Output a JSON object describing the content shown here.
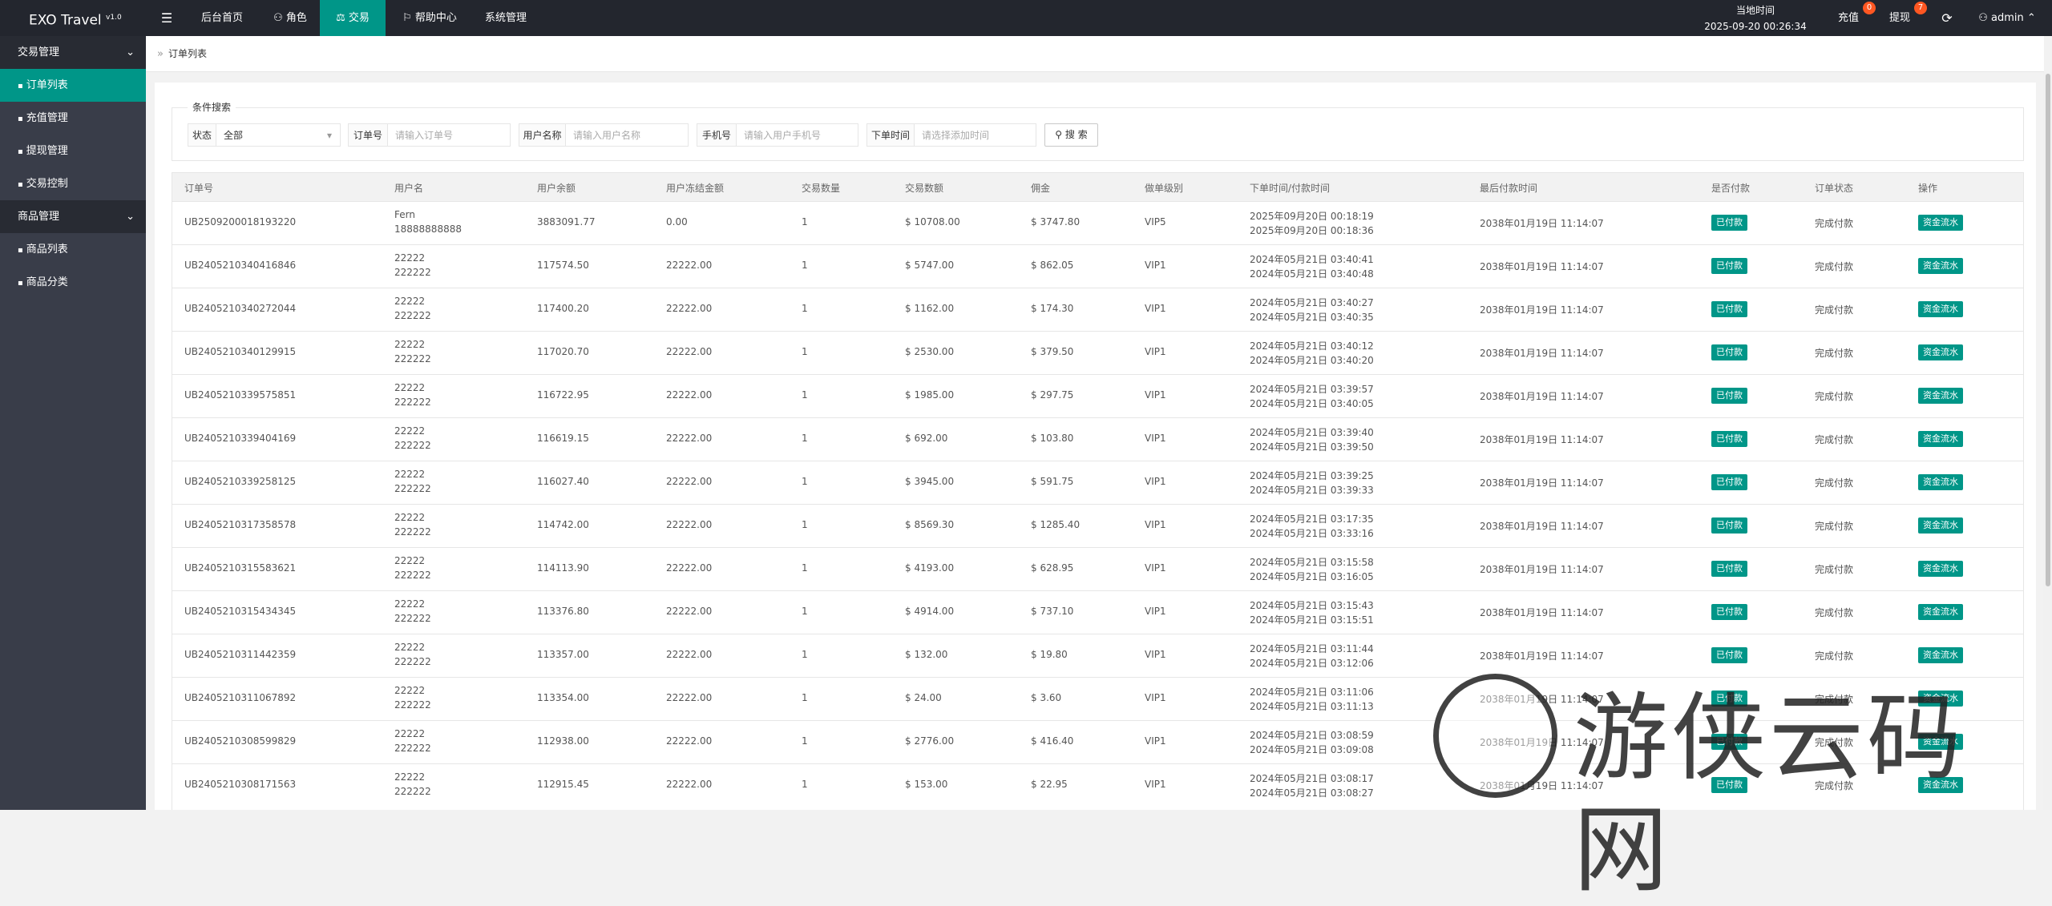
{
  "header": {
    "logo": "EXO Travel",
    "version": "v1.0",
    "nav": [
      "后台首页",
      "角色",
      "交易",
      "帮助中心",
      "系统管理"
    ],
    "time_label": "当地时间",
    "time": "2025-09-20 00:26:34",
    "recharge": "充值",
    "recharge_badge": 0,
    "withdraw": "提现",
    "withdraw_badge": 7,
    "user": "admin"
  },
  "sidebar": {
    "groups": [
      {
        "title": "交易管理",
        "items": [
          "订单列表",
          "充值管理",
          "提现管理",
          "交易控制"
        ]
      },
      {
        "title": "商品管理",
        "items": [
          "商品列表",
          "商品分类"
        ]
      }
    ]
  },
  "breadcrumb": "订单列表",
  "search": {
    "legend": "条件搜索",
    "status_label": "状态",
    "status_value": "全部",
    "order_label": "订单号",
    "order_placeholder": "请输入订单号",
    "name_label": "用户名称",
    "name_placeholder": "请输入用户名称",
    "phone_label": "手机号",
    "phone_placeholder": "请输入用户手机号",
    "time_label": "下单时间",
    "time_placeholder": "请选择添加时间",
    "button": "搜 索"
  },
  "table": {
    "headers": [
      "订单号",
      "用户名",
      "用户余额",
      "用户冻结金额",
      "交易数量",
      "交易数额",
      "佣金",
      "做单级别",
      "下单时间/付款时间",
      "最后付款时间",
      "是否付款",
      "订单状态",
      "操作"
    ],
    "rows": [
      [
        "UB2509200018193220",
        "Fern",
        "18888888888",
        "3883091.77",
        "0.00",
        "1",
        "$ 10708.00",
        "$ 3747.80",
        "VIP5",
        "2025年09月20日 00:18:19",
        "2025年09月20日 00:18:36",
        "2038年01月19日 11:14:07",
        "已付款",
        "完成付款",
        "资金流水"
      ],
      [
        "UB2405210340416846",
        "22222",
        "222222",
        "117574.50",
        "22222.00",
        "1",
        "$ 5747.00",
        "$ 862.05",
        "VIP1",
        "2024年05月21日 03:40:41",
        "2024年05月21日 03:40:48",
        "2038年01月19日 11:14:07",
        "已付款",
        "完成付款",
        "资金流水"
      ],
      [
        "UB2405210340272044",
        "22222",
        "222222",
        "117400.20",
        "22222.00",
        "1",
        "$ 1162.00",
        "$ 174.30",
        "VIP1",
        "2024年05月21日 03:40:27",
        "2024年05月21日 03:40:35",
        "2038年01月19日 11:14:07",
        "已付款",
        "完成付款",
        "资金流水"
      ],
      [
        "UB2405210340129915",
        "22222",
        "222222",
        "117020.70",
        "22222.00",
        "1",
        "$ 2530.00",
        "$ 379.50",
        "VIP1",
        "2024年05月21日 03:40:12",
        "2024年05月21日 03:40:20",
        "2038年01月19日 11:14:07",
        "已付款",
        "完成付款",
        "资金流水"
      ],
      [
        "UB2405210339575851",
        "22222",
        "222222",
        "116722.95",
        "22222.00",
        "1",
        "$ 1985.00",
        "$ 297.75",
        "VIP1",
        "2024年05月21日 03:39:57",
        "2024年05月21日 03:40:05",
        "2038年01月19日 11:14:07",
        "已付款",
        "完成付款",
        "资金流水"
      ],
      [
        "UB2405210339404169",
        "22222",
        "222222",
        "116619.15",
        "22222.00",
        "1",
        "$ 692.00",
        "$ 103.80",
        "VIP1",
        "2024年05月21日 03:39:40",
        "2024年05月21日 03:39:50",
        "2038年01月19日 11:14:07",
        "已付款",
        "完成付款",
        "资金流水"
      ],
      [
        "UB2405210339258125",
        "22222",
        "222222",
        "116027.40",
        "22222.00",
        "1",
        "$ 3945.00",
        "$ 591.75",
        "VIP1",
        "2024年05月21日 03:39:25",
        "2024年05月21日 03:39:33",
        "2038年01月19日 11:14:07",
        "已付款",
        "完成付款",
        "资金流水"
      ],
      [
        "UB2405210317358578",
        "22222",
        "222222",
        "114742.00",
        "22222.00",
        "1",
        "$ 8569.30",
        "$ 1285.40",
        "VIP1",
        "2024年05月21日 03:17:35",
        "2024年05月21日 03:33:16",
        "2038年01月19日 11:14:07",
        "已付款",
        "完成付款",
        "资金流水"
      ],
      [
        "UB2405210315583621",
        "22222",
        "222222",
        "114113.90",
        "22222.00",
        "1",
        "$ 4193.00",
        "$ 628.95",
        "VIP1",
        "2024年05月21日 03:15:58",
        "2024年05月21日 03:16:05",
        "2038年01月19日 11:14:07",
        "已付款",
        "完成付款",
        "资金流水"
      ],
      [
        "UB2405210315434345",
        "22222",
        "222222",
        "113376.80",
        "22222.00",
        "1",
        "$ 4914.00",
        "$ 737.10",
        "VIP1",
        "2024年05月21日 03:15:43",
        "2024年05月21日 03:15:51",
        "2038年01月19日 11:14:07",
        "已付款",
        "完成付款",
        "资金流水"
      ],
      [
        "UB2405210311442359",
        "22222",
        "222222",
        "113357.00",
        "22222.00",
        "1",
        "$ 132.00",
        "$ 19.80",
        "VIP1",
        "2024年05月21日 03:11:44",
        "2024年05月21日 03:12:06",
        "2038年01月19日 11:14:07",
        "已付款",
        "完成付款",
        "资金流水"
      ],
      [
        "UB2405210311067892",
        "22222",
        "222222",
        "113354.00",
        "22222.00",
        "1",
        "$ 24.00",
        "$ 3.60",
        "VIP1",
        "2024年05月21日 03:11:06",
        "2024年05月21日 03:11:13",
        "2038年01月19日 11:14:07",
        "已付款",
        "完成付款",
        "资金流水"
      ],
      [
        "UB2405210308599829",
        "22222",
        "222222",
        "112938.00",
        "22222.00",
        "1",
        "$ 2776.00",
        "$ 416.40",
        "VIP1",
        "2024年05月21日 03:08:59",
        "2024年05月21日 03:09:08",
        "2038年01月19日 11:14:07",
        "已付款",
        "完成付款",
        "资金流水"
      ],
      [
        "UB2405210308171563",
        "22222",
        "222222",
        "112915.45",
        "22222.00",
        "1",
        "$ 153.00",
        "$ 22.95",
        "VIP1",
        "2024年05月21日 03:08:17",
        "2024年05月21日 03:08:27",
        "2038年01月19日 11:14:07",
        "已付款",
        "完成付款",
        "资金流水"
      ]
    ]
  },
  "watermark": "游侠云码网"
}
